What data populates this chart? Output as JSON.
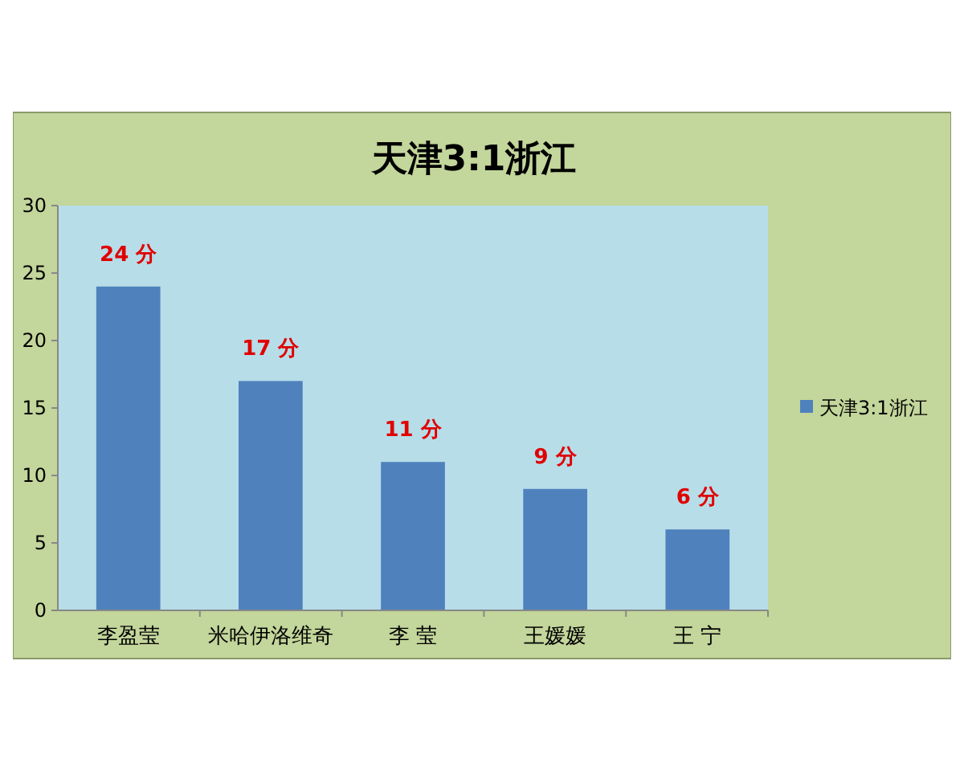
{
  "chart_data": {
    "type": "bar",
    "title": "天津3:1浙江",
    "categories": [
      "李盈莹",
      "米哈伊洛维奇",
      "李 莹",
      "王媛媛",
      "王 宁"
    ],
    "series": [
      {
        "name": "天津3:1浙江",
        "color": "#4f81bd",
        "values": [
          24,
          17,
          11,
          9,
          6
        ]
      }
    ],
    "value_labels": [
      "24 分",
      "17 分",
      "11 分",
      "9 分",
      "6 分"
    ],
    "ylim": [
      0,
      30
    ],
    "yticks": [
      0,
      5,
      10,
      15,
      20,
      25,
      30
    ],
    "legend": "right"
  }
}
